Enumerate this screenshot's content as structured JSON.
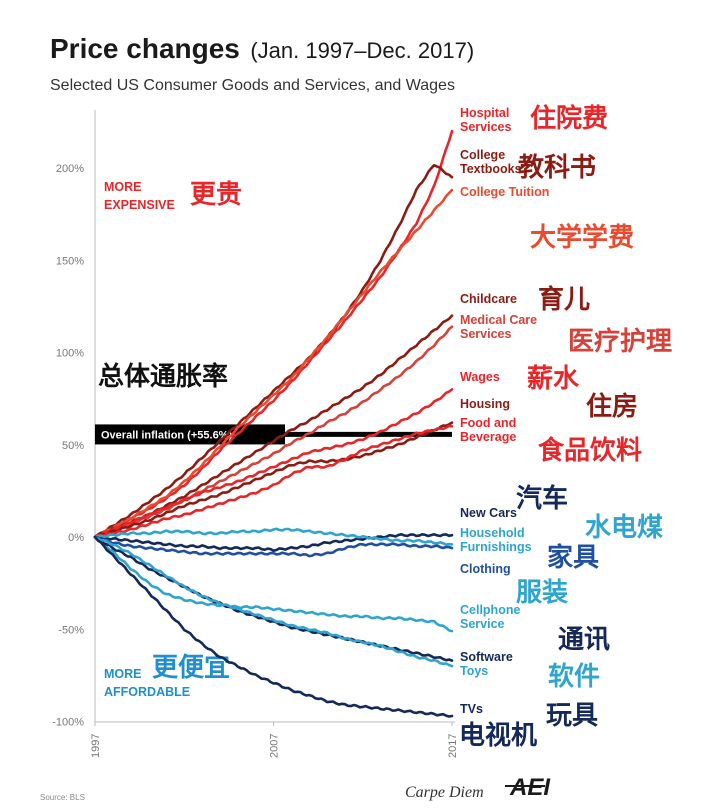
{
  "chart_data": {
    "type": "line",
    "title": "Price changes",
    "title_date": "(Jan. 1997–Dec. 2017)",
    "subtitle": "Selected US Consumer Goods and Services, and Wages",
    "x_ticks": [
      "1997",
      "2007",
      "2017"
    ],
    "xlim": [
      1997,
      2018
    ],
    "ylim": [
      -100,
      225
    ],
    "y_ticks": [
      {
        "value": 200,
        "label": "200%"
      },
      {
        "value": 150,
        "label": "150%"
      },
      {
        "value": 100,
        "label": "100%"
      },
      {
        "value": 50,
        "label": "50%"
      },
      {
        "value": 0,
        "label": "0%"
      },
      {
        "value": -50,
        "label": "-50%"
      },
      {
        "value": -100,
        "label": "-100%"
      }
    ],
    "more_expensive": {
      "label_line1": "MORE",
      "label_line2": "EXPENSIVE",
      "annotation": "更贵",
      "color": "#e8262a"
    },
    "more_affordable": {
      "label_line1": "MORE",
      "label_line2": "AFFORDABLE",
      "annotation": "更便宜",
      "color": "#1e8fd1"
    },
    "overall_inflation": {
      "value": 55.6,
      "label": "Overall inflation (+55.6%)",
      "annotation": "总体通胀率",
      "color": "#000000"
    },
    "series": [
      {
        "name": "Hospital Services",
        "label_lines": [
          "Hospital",
          "Services"
        ],
        "annotation": "住院费",
        "color": "#e8262a",
        "x": [
          1997,
          1998,
          1999,
          2000,
          2001,
          2002,
          2003,
          2004,
          2005,
          2006,
          2007,
          2008,
          2009,
          2010,
          2011,
          2012,
          2013,
          2014,
          2015,
          2016,
          2017
        ],
        "y": [
          0,
          5,
          10,
          15,
          21,
          28,
          37,
          47,
          56,
          65,
          74,
          84,
          95,
          106,
          117,
          129,
          141,
          155,
          170,
          190,
          220
        ]
      },
      {
        "name": "College Textbooks",
        "label_lines": [
          "College",
          "Textbooks"
        ],
        "annotation": "教科书",
        "color": "#8c1c13",
        "x": [
          1997,
          1998,
          1999,
          2000,
          2001,
          2002,
          2003,
          2004,
          2005,
          2006,
          2007,
          2008,
          2009,
          2010,
          2011,
          2012,
          2013,
          2014,
          2015,
          2016,
          2017
        ],
        "y": [
          0,
          6,
          12,
          19,
          26,
          34,
          43,
          52,
          61,
          70,
          79,
          88,
          97,
          108,
          120,
          134,
          150,
          168,
          188,
          202,
          195
        ]
      },
      {
        "name": "College Tuition",
        "label_lines": [
          "College Tuition"
        ],
        "annotation": "大学学费",
        "color": "#ea4b2f",
        "x": [
          1997,
          1998,
          1999,
          2000,
          2001,
          2002,
          2003,
          2004,
          2005,
          2006,
          2007,
          2008,
          2009,
          2010,
          2011,
          2012,
          2013,
          2014,
          2015,
          2016,
          2017
        ],
        "y": [
          0,
          5,
          10,
          16,
          22,
          30,
          39,
          49,
          59,
          68,
          77,
          86,
          97,
          108,
          120,
          132,
          144,
          155,
          166,
          177,
          188
        ]
      },
      {
        "name": "Childcare",
        "label_lines": [
          "Childcare"
        ],
        "annotation": "育儿",
        "color": "#8c1c13",
        "x": [
          1997,
          1998,
          1999,
          2000,
          2001,
          2002,
          2003,
          2004,
          2005,
          2006,
          2007,
          2008,
          2009,
          2010,
          2011,
          2012,
          2013,
          2014,
          2015,
          2016,
          2017
        ],
        "y": [
          0,
          4,
          8,
          12,
          17,
          22,
          28,
          34,
          40,
          46,
          52,
          58,
          63,
          69,
          75,
          81,
          88,
          96,
          104,
          112,
          120
        ]
      },
      {
        "name": "Medical Care Services",
        "label_lines": [
          "Medical Care",
          "Services"
        ],
        "annotation": "医疗护理",
        "color": "#d4423a",
        "x": [
          1997,
          1998,
          1999,
          2000,
          2001,
          2002,
          2003,
          2004,
          2005,
          2006,
          2007,
          2008,
          2009,
          2010,
          2011,
          2012,
          2013,
          2014,
          2015,
          2016,
          2017
        ],
        "y": [
          0,
          3,
          7,
          11,
          15,
          20,
          25,
          30,
          35,
          40,
          45,
          51,
          56,
          62,
          67,
          73,
          80,
          87,
          95,
          104,
          114
        ]
      },
      {
        "name": "Wages",
        "label_lines": [
          "Wages"
        ],
        "annotation": "薪水",
        "color": "#e8262a",
        "x": [
          1997,
          1998,
          1999,
          2000,
          2001,
          2002,
          2003,
          2004,
          2005,
          2006,
          2007,
          2008,
          2009,
          2010,
          2011,
          2012,
          2013,
          2014,
          2015,
          2016,
          2017
        ],
        "y": [
          0,
          4,
          8,
          12,
          16,
          20,
          24,
          27,
          30,
          34,
          38,
          42,
          46,
          48,
          50,
          53,
          57,
          62,
          67,
          73,
          80
        ]
      },
      {
        "name": "Housing",
        "label_lines": [
          "Housing"
        ],
        "annotation": "住房",
        "color": "#8c1c13",
        "x": [
          1997,
          1998,
          1999,
          2000,
          2001,
          2002,
          2003,
          2004,
          2005,
          2006,
          2007,
          2008,
          2009,
          2010,
          2011,
          2012,
          2013,
          2014,
          2015,
          2016,
          2017
        ],
        "y": [
          0,
          3,
          6,
          9,
          13,
          17,
          20,
          23,
          27,
          31,
          35,
          39,
          41,
          41,
          42,
          44,
          47,
          50,
          54,
          58,
          62
        ]
      },
      {
        "name": "Food and Beverage",
        "label_lines": [
          "Food and",
          "Beverage"
        ],
        "annotation": "食品饮料",
        "color": "#e8262a",
        "x": [
          1997,
          1998,
          1999,
          2000,
          2001,
          2002,
          2003,
          2004,
          2005,
          2006,
          2007,
          2008,
          2009,
          2010,
          2011,
          2012,
          2013,
          2014,
          2015,
          2016,
          2017
        ],
        "y": [
          0,
          2,
          4,
          7,
          10,
          12,
          15,
          18,
          21,
          24,
          28,
          34,
          38,
          38,
          42,
          47,
          50,
          53,
          56,
          58,
          60
        ]
      },
      {
        "name": "New Cars",
        "label_lines": [
          "New Cars"
        ],
        "annotation": "汽车",
        "color": "#14285a",
        "x": [
          1997,
          1998,
          1999,
          2000,
          2001,
          2002,
          2003,
          2004,
          2005,
          2006,
          2007,
          2008,
          2009,
          2010,
          2011,
          2012,
          2013,
          2014,
          2015,
          2016,
          2017
        ],
        "y": [
          0,
          -1,
          -2,
          -3,
          -4,
          -5,
          -5,
          -6,
          -6,
          -6,
          -7,
          -6,
          -5,
          -3,
          -2,
          -1,
          0,
          1,
          1,
          1,
          1
        ]
      },
      {
        "name": "Household Furnishings",
        "label_lines": [
          "Household",
          "Furnishings"
        ],
        "annotation": "水电煤",
        "color": "#2fa4cf",
        "x": [
          1997,
          1998,
          1999,
          2000,
          2001,
          2002,
          2003,
          2004,
          2005,
          2006,
          2007,
          2008,
          2009,
          2010,
          2011,
          2012,
          2013,
          2014,
          2015,
          2016,
          2017
        ],
        "y": [
          0,
          1,
          2,
          2,
          3,
          3,
          2,
          2,
          3,
          3,
          4,
          4,
          3,
          2,
          1,
          0,
          -1,
          -2,
          -2,
          -3,
          -4
        ]
      },
      {
        "name": "Clothing",
        "label_lines": [
          "Clothing"
        ],
        "annotation": "家具",
        "color": "#1f4f9e",
        "x": [
          1997,
          1998,
          1999,
          2000,
          2001,
          2002,
          2003,
          2004,
          2005,
          2006,
          2007,
          2008,
          2009,
          2010,
          2011,
          2012,
          2013,
          2014,
          2015,
          2016,
          2017
        ],
        "y": [
          0,
          -3,
          -5,
          -6,
          -7,
          -8,
          -9,
          -9,
          -9,
          -9,
          -9,
          -9,
          -10,
          -9,
          -6,
          -4,
          -4,
          -4,
          -5,
          -5,
          -6
        ]
      },
      {
        "name": "Cellphone Service",
        "label_lines": [
          "Cellphone",
          "Service"
        ],
        "annotation": "服装",
        "color": "#2fa4cf",
        "x": [
          1997,
          1998,
          1999,
          2000,
          2001,
          2002,
          2003,
          2004,
          2005,
          2006,
          2007,
          2008,
          2009,
          2010,
          2011,
          2012,
          2013,
          2014,
          2015,
          2016,
          2017
        ],
        "y": [
          0,
          -8,
          -17,
          -25,
          -31,
          -34,
          -36,
          -37,
          -38,
          -38,
          -39,
          -40,
          -41,
          -42,
          -43,
          -43,
          -44,
          -44,
          -45,
          -46,
          -51
        ]
      },
      {
        "name": "Software",
        "label_lines": [
          "Software"
        ],
        "annotation": "通讯",
        "color": "#14285a",
        "x": [
          1997,
          1998,
          1999,
          2000,
          2001,
          2002,
          2003,
          2004,
          2005,
          2006,
          2007,
          2008,
          2009,
          2010,
          2011,
          2012,
          2013,
          2014,
          2015,
          2016,
          2017
        ],
        "y": [
          0,
          -6,
          -11,
          -17,
          -22,
          -27,
          -32,
          -36,
          -40,
          -43,
          -46,
          -49,
          -51,
          -53,
          -55,
          -57,
          -59,
          -61,
          -63,
          -65,
          -67
        ]
      },
      {
        "name": "Toys",
        "label_lines": [
          "Toys"
        ],
        "annotation": "软件",
        "color": "#2fa4cf",
        "x": [
          1997,
          1998,
          1999,
          2000,
          2001,
          2002,
          2003,
          2004,
          2005,
          2006,
          2007,
          2008,
          2009,
          2010,
          2011,
          2012,
          2013,
          2014,
          2015,
          2016,
          2017
        ],
        "y": [
          0,
          -4,
          -9,
          -15,
          -21,
          -27,
          -32,
          -36,
          -39,
          -42,
          -45,
          -48,
          -50,
          -52,
          -55,
          -57,
          -59,
          -62,
          -65,
          -67,
          -70
        ]
      },
      {
        "name": "TVs",
        "label_lines": [
          "TVs"
        ],
        "annotation": "玩具",
        "annotation2": "电视机",
        "color": "#14285a",
        "x": [
          1997,
          1998,
          1999,
          2000,
          2001,
          2002,
          2003,
          2004,
          2005,
          2006,
          2007,
          2008,
          2009,
          2010,
          2011,
          2012,
          2013,
          2014,
          2015,
          2016,
          2017
        ],
        "y": [
          0,
          -10,
          -20,
          -30,
          -40,
          -50,
          -58,
          -65,
          -70,
          -75,
          -79,
          -83,
          -86,
          -89,
          -91,
          -92,
          -93,
          -94,
          -95,
          -96,
          -97
        ]
      }
    ],
    "source": "Source: BLS",
    "brand": "Carpe Diem",
    "logo": "AEI"
  }
}
